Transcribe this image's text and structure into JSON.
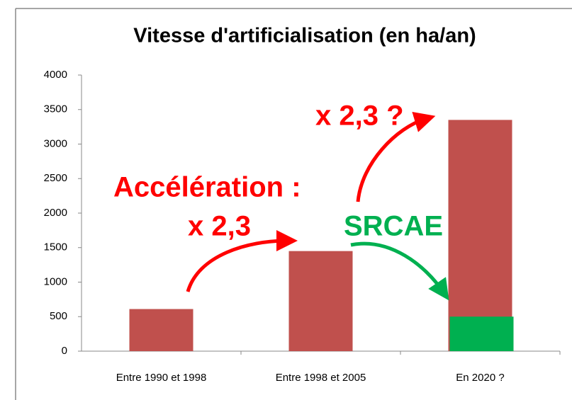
{
  "chart_data": {
    "type": "bar",
    "title": "Vitesse d'artificialisation (en ha/an)",
    "categories": [
      "Entre 1990 et 1998",
      "Entre 1998 et 2005",
      "En 2020 ?"
    ],
    "series": [
      {
        "color": "#c0504d",
        "values": [
          610,
          1450,
          3350
        ]
      },
      {
        "color": "#00b050",
        "values": [
          null,
          null,
          500
        ]
      }
    ],
    "ylim": [
      0,
      4000
    ],
    "yticks": [
      0,
      500,
      1000,
      1500,
      2000,
      2500,
      3000,
      3500,
      4000
    ],
    "annotations": [
      {
        "text": "Accélération :",
        "color": "#ff0000"
      },
      {
        "text": "x 2,3",
        "color": "#ff0000"
      },
      {
        "text": "x 2,3 ?",
        "color": "#ff0000"
      },
      {
        "text": "SRCAE",
        "color": "#00b050"
      }
    ]
  }
}
